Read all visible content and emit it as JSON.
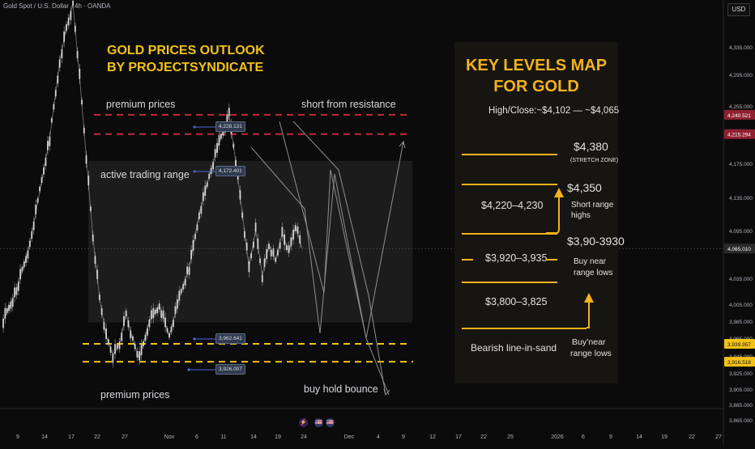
{
  "header": {
    "symbol_line": "Gold Spot / U.S. Dollar · 4h · OANDA",
    "currency": "USD"
  },
  "title": {
    "line1": "GOLD PRICES OUTLOOK",
    "line2": "BY PROJECTSYNDICATE"
  },
  "labels": {
    "premium_top": "premium prices",
    "premium_bottom": "premium prices",
    "active_range": "active trading range",
    "short_from_resistance": "short from resistance",
    "buy_hold_bounce": "buy hold bounce"
  },
  "price_tags": [
    "4,228.131",
    "4,172.401",
    "3,962.641",
    "3,926.007"
  ],
  "key_levels": {
    "title_line1": "KEY LEVELS MAP",
    "title_line2": "FOR GOLD",
    "subtitle": "High/Close:~$4,102 — ~$4,065",
    "level_4380": "$4,380",
    "stretch_zone": "(STRETCH ZONE)",
    "level_4350": "$4,350",
    "range_4220": "$4,220–4,230",
    "short_range_1": "Short range",
    "short_range_2": "highs",
    "level_3930": "$3,90-3930",
    "range_3920": "$3,920–3,935",
    "buy_near_1": "Buy near",
    "buy_near_2": "range lows",
    "range_3800": "$3,800–3,825",
    "bearish": "Bearish line-in-sand",
    "buy_near_b1": "Buy’near",
    "buy_near_b2": "range lows"
  },
  "colors": {
    "accent": "#f2b21b",
    "resistance_dash": "#c2283c",
    "support_dash": "#f2c218",
    "candle_body": "#d0d0d0",
    "price_line": "#e8e8e8"
  },
  "y_axis": {
    "ticks": [
      "4,335.000",
      "4,295.000",
      "4,255.000",
      "4,175.000",
      "4,135.000",
      "4,095.000",
      "4,035.000",
      "4,005.000",
      "3,985.000",
      "3,965.000",
      "3,945.000",
      "3,925.000",
      "3,905.000",
      "3,885.000",
      "3,865.000"
    ],
    "badges": [
      {
        "label": "4,240.521",
        "price": 4240.521,
        "color": "#8e2130"
      },
      {
        "label": "4,215.294",
        "price": 4215.294,
        "color": "#8e2130"
      },
      {
        "label": "4,065.010",
        "price": 4065.01,
        "color": "#2a2a2a"
      },
      {
        "label": "3,939.957",
        "price": 3939.957,
        "color": "#f2c218"
      },
      {
        "label": "3,916.518",
        "price": 3916.518,
        "color": "#f2c218"
      }
    ]
  },
  "x_axis": {
    "ticks": [
      "9",
      "14",
      "17",
      "22",
      "27",
      "Nov",
      "6",
      "11",
      "14",
      "19",
      "24",
      "Dec",
      "4",
      "9",
      "12",
      "17",
      "22",
      "25",
      "2026",
      "6",
      "9",
      "14",
      "19",
      "22",
      "27"
    ]
  },
  "chart_data": {
    "type": "line",
    "title": "GOLD PRICES OUTLOOK BY PROJECTSYNDICATE",
    "instrument": "Gold Spot / U.S. Dollar · 4h · OANDA",
    "xlabel": "",
    "ylabel": "",
    "currency": "USD",
    "series": [
      {
        "name": "Gold Spot / U.S. Dollar",
        "x_index": [
          0,
          8,
          16,
          22,
          28,
          34,
          38,
          42,
          46,
          50,
          54,
          58,
          62,
          66,
          70,
          74,
          78,
          82,
          88,
          94,
          100,
          106,
          112,
          118,
          124,
          130,
          136,
          140,
          144,
          148,
          152,
          156,
          160,
          164,
          168,
          172,
          176,
          180
        ],
        "y": [
          3970,
          4010,
          4070,
          4140,
          4210,
          4310,
          4355,
          4385,
          4290,
          4185,
          4080,
          4000,
          3950,
          3925,
          3940,
          3980,
          3945,
          3920,
          3970,
          3990,
          3950,
          4000,
          4040,
          4110,
          4160,
          4205,
          4240,
          4180,
          4110,
          4040,
          4090,
          4030,
          4070,
          4050,
          4085,
          4060,
          4095,
          4065
        ]
      }
    ],
    "levels": [
      {
        "price": 4240.521,
        "style": "dashed",
        "color": "red"
      },
      {
        "price": 4215.294,
        "style": "dashed",
        "color": "red"
      },
      {
        "price": 3939.957,
        "style": "dashed",
        "color": "yellow"
      },
      {
        "price": 3916.518,
        "style": "dashed",
        "color": "yellow"
      }
    ],
    "range_box": {
      "top": 4180,
      "bottom": 3968
    },
    "last_price": 4065.01,
    "ylim": [
      3855,
      4370
    ],
    "grid": false
  },
  "events": [
    "⚡",
    "🇺🇸",
    "🇺🇸"
  ]
}
